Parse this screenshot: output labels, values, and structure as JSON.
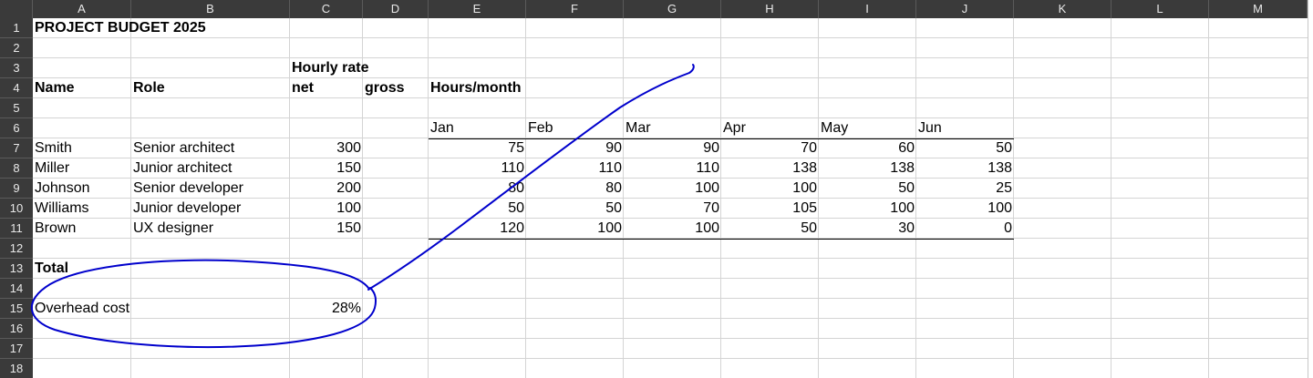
{
  "columns": [
    "A",
    "B",
    "C",
    "D",
    "E",
    "F",
    "G",
    "H",
    "I",
    "J",
    "K",
    "L",
    "M"
  ],
  "rows": [
    "1",
    "2",
    "3",
    "4",
    "5",
    "6",
    "7",
    "8",
    "9",
    "10",
    "11",
    "12",
    "13",
    "14",
    "15",
    "16",
    "17",
    "18"
  ],
  "sheet": {
    "title": "PROJECT BUDGET 2025",
    "hourly_rate_label": "Hourly rate",
    "name_header": "Name",
    "role_header": "Role",
    "net_header": "net",
    "gross_header": "gross",
    "hours_header": "Hours/month",
    "months": [
      "Jan",
      "Feb",
      "Mar",
      "Apr",
      "May",
      "Jun"
    ],
    "people": [
      {
        "name": "Smith",
        "role": "Senior architect",
        "rate": "300",
        "hours": [
          "75",
          "90",
          "90",
          "70",
          "60",
          "50"
        ]
      },
      {
        "name": "Miller",
        "role": "Junior architect",
        "rate": "150",
        "hours": [
          "110",
          "110",
          "110",
          "138",
          "138",
          "138"
        ]
      },
      {
        "name": "Johnson",
        "role": "Senior developer",
        "rate": "200",
        "hours": [
          "80",
          "80",
          "100",
          "100",
          "50",
          "25"
        ]
      },
      {
        "name": "Williams",
        "role": "Junior developer",
        "rate": "100",
        "hours": [
          "50",
          "50",
          "70",
          "105",
          "100",
          "100"
        ]
      },
      {
        "name": "Brown",
        "role": "UX designer",
        "rate": "150",
        "hours": [
          "120",
          "100",
          "100",
          "50",
          "30",
          "0"
        ]
      }
    ],
    "total_label": "Total",
    "overhead_label": "Overhead cost",
    "overhead_value": "28%"
  },
  "colors": {
    "header_bg": "#3a3a3a",
    "header_text": "#e8e8e8",
    "gridline": "#d4d4d4",
    "annotation": "#0000cc"
  }
}
